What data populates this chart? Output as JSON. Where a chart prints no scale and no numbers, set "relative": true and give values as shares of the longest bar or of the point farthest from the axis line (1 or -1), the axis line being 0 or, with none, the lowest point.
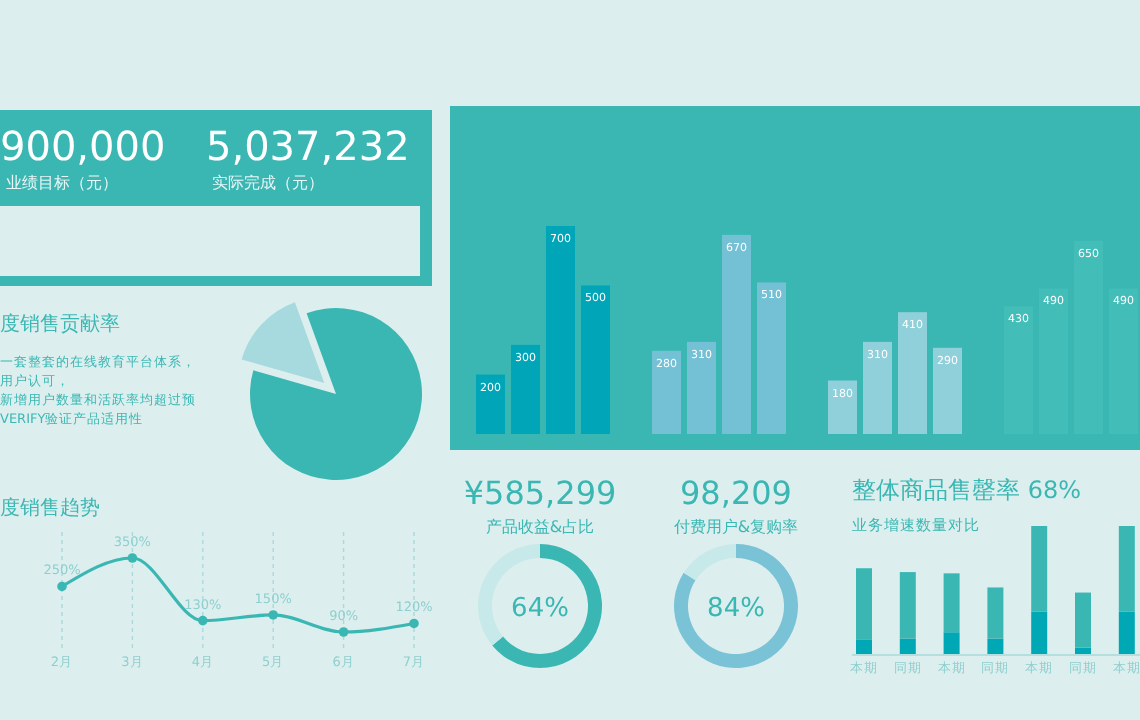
{
  "chart_data": [
    {
      "type": "other",
      "annotations": [
        "900,000",
        "业绩目标（元）",
        "5,037,232",
        "实际完成（元）"
      ]
    },
    {
      "type": "pie",
      "title": "度销售贡献率",
      "categories": [
        null,
        null
      ],
      "values": [
        85,
        15
      ],
      "colors": [
        "#3bb7b3",
        "#a6dadf"
      ],
      "annotations": [
        "一套整套的在线教育平台体系，",
        "用户认可，",
        "新增用户数量和活跃率均超过预",
        "VERIFY验证产品适用性"
      ]
    },
    {
      "type": "line",
      "title": "度销售趋势",
      "categories": [
        "2月",
        "3月",
        "4月",
        "5月",
        "6月",
        "7月"
      ],
      "values": [
        250,
        350,
        130,
        150,
        90,
        120
      ],
      "value_labels": [
        "250%",
        "350%",
        "130%",
        "150%",
        "90%",
        "120%"
      ],
      "color": "#3bb7b3",
      "grid": "x",
      "marker": "circle"
    },
    {
      "type": "bar",
      "categories": [
        null,
        null,
        null,
        null,
        null,
        null,
        null,
        null,
        null,
        null,
        null,
        null,
        null,
        null,
        null,
        null
      ],
      "values": [
        200,
        300,
        700,
        500,
        280,
        310,
        670,
        510,
        180,
        310,
        410,
        290,
        430,
        490,
        650,
        490
      ],
      "colors": [
        "#00a6b8",
        "#00a6b8",
        "#00a6b8",
        "#00a6b8",
        "#74c0d4",
        "#74c0d4",
        "#74c0d4",
        "#74c0d4",
        "#8fd0da",
        "#8fd0da",
        "#8fd0da",
        "#8fd0da",
        "#42bdb8",
        "#42bdb8",
        "#42bdb8",
        "#42bdb8"
      ],
      "data_labels": true
    },
    {
      "type": "donut",
      "title": "¥585,299",
      "subtitle": "产品收益&占比",
      "categories": [
        null,
        null
      ],
      "values": [
        64,
        36
      ],
      "colors": [
        "#3bb7b3",
        "#c8e9e9"
      ],
      "value_labels": [
        "64%",
        null
      ]
    },
    {
      "type": "donut",
      "title": "98,209",
      "subtitle": "付费用户&复购率",
      "categories": [
        null,
        null
      ],
      "values": [
        84,
        16
      ],
      "colors": [
        "#7ac3d6",
        "#c8e9e9"
      ],
      "value_labels": [
        "84%",
        null
      ]
    },
    {
      "type": "bar",
      "stacked": true,
      "relative": true,
      "title": "整体商品售罄率 68%",
      "subtitle": "业务增速数量对比",
      "categories": [
        "本期",
        "同期",
        "本期",
        "同期",
        "本期",
        "同期",
        "本期"
      ],
      "series": [
        {
          "color": "#00a8b5",
          "values": [
            0.11,
            0.12,
            0.17,
            0.12,
            0.33,
            0.05,
            0.33
          ]
        },
        {
          "color": "#3bb7b3",
          "values": [
            0.56,
            0.52,
            0.46,
            0.4,
            0.67,
            0.43,
            0.67
          ]
        }
      ]
    }
  ]
}
